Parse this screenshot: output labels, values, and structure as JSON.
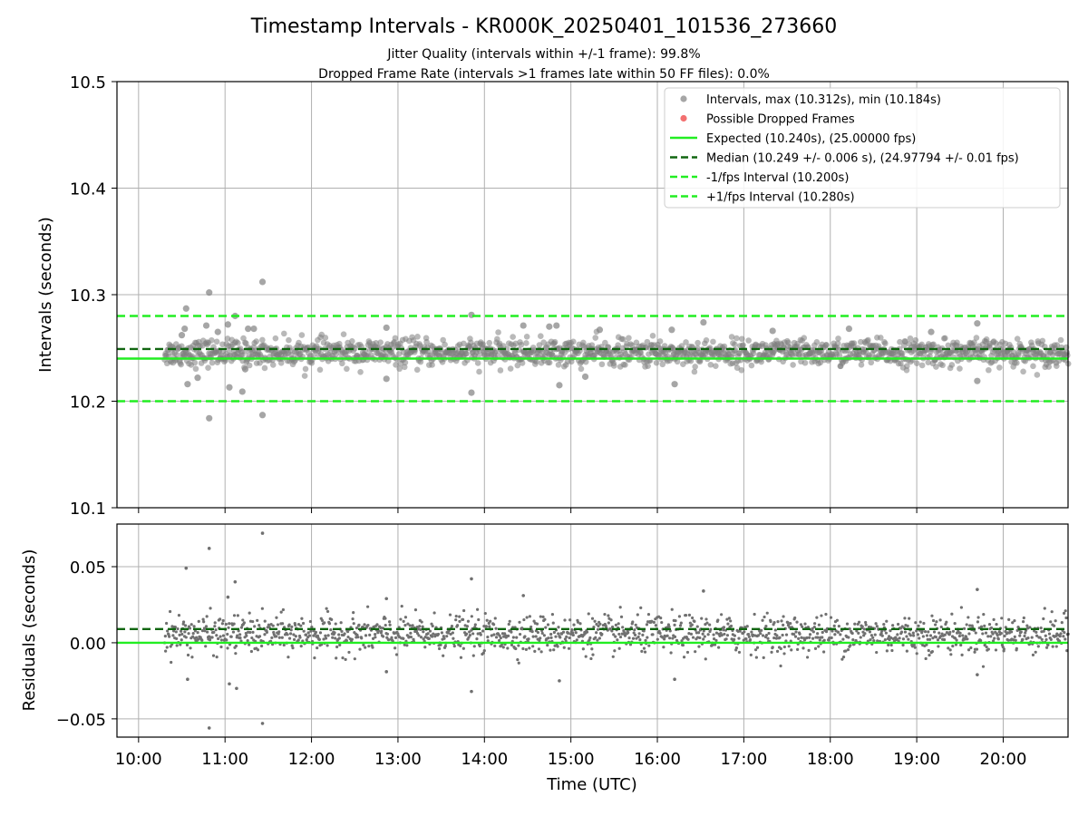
{
  "chart_data": [
    {
      "type": "scatter",
      "title": "Timestamp Intervals - KR000K_20250401_101536_273660",
      "subtitle_lines": [
        "Jitter Quality (intervals within +/-1 frame): 99.8%",
        "Dropped Frame Rate (intervals >1 frames late within 50 FF files): 0.0%"
      ],
      "ylabel": "Intervals (seconds)",
      "xlabel": "",
      "xlim": [
        "09:45",
        "20:45"
      ],
      "ylim": [
        10.1,
        10.5
      ],
      "x_ticks": [
        "10:00",
        "11:00",
        "12:00",
        "13:00",
        "14:00",
        "15:00",
        "16:00",
        "17:00",
        "18:00",
        "19:00",
        "20:00"
      ],
      "y_ticks": [
        "10.1",
        "10.2",
        "10.3",
        "10.4",
        "10.5"
      ],
      "grid": true,
      "legend_position": "top-right",
      "legend": [
        {
          "label": "Intervals, max (10.312s), min (10.184s)",
          "kind": "marker",
          "color": "#808080"
        },
        {
          "label": "Possible Dropped Frames",
          "kind": "marker",
          "color": "#ee3333"
        },
        {
          "label": "Expected (10.240s), (25.00000 fps)",
          "kind": "solid",
          "color": "#22ee22"
        },
        {
          "label": "Median (10.249 +/- 0.006 s), (24.97794 +/- 0.01 fps)",
          "kind": "dashed",
          "color": "#116611"
        },
        {
          "label": "-1/fps Interval (10.200s)",
          "kind": "dashed",
          "color": "#22ee22"
        },
        {
          "label": "+1/fps Interval (10.280s)",
          "kind": "dashed",
          "color": "#22ee22"
        }
      ],
      "reference_lines": [
        {
          "name": "Expected",
          "y": 10.24,
          "style": "solid",
          "color": "#22ee22"
        },
        {
          "name": "Median",
          "y": 10.249,
          "style": "dashed",
          "color": "#116611"
        },
        {
          "name": "-1/fps Interval",
          "y": 10.2,
          "style": "dashed",
          "color": "#22ee22"
        },
        {
          "name": "+1/fps Interval",
          "y": 10.28,
          "style": "dashed",
          "color": "#22ee22"
        }
      ],
      "series": [
        {
          "name": "Intervals",
          "color": "#808080",
          "x_range": [
            "10:18",
            "20:45"
          ],
          "typical_band": [
            10.233,
            10.258
          ],
          "outliers": [
            {
              "x": "10:30",
              "y": 10.262
            },
            {
              "x": "10:32",
              "y": 10.268
            },
            {
              "x": "10:33",
              "y": 10.287
            },
            {
              "x": "10:34",
              "y": 10.216
            },
            {
              "x": "10:41",
              "y": 10.222
            },
            {
              "x": "10:47",
              "y": 10.271
            },
            {
              "x": "10:49",
              "y": 10.302
            },
            {
              "x": "10:49",
              "y": 10.184
            },
            {
              "x": "10:55",
              "y": 10.265
            },
            {
              "x": "11:02",
              "y": 10.272
            },
            {
              "x": "11:03",
              "y": 10.213
            },
            {
              "x": "11:07",
              "y": 10.28
            },
            {
              "x": "11:12",
              "y": 10.209
            },
            {
              "x": "11:14",
              "y": 10.23
            },
            {
              "x": "11:16",
              "y": 10.268
            },
            {
              "x": "11:20",
              "y": 10.268
            },
            {
              "x": "11:26",
              "y": 10.312
            },
            {
              "x": "11:26",
              "y": 10.187
            },
            {
              "x": "12:52",
              "y": 10.269
            },
            {
              "x": "12:52",
              "y": 10.221
            },
            {
              "x": "13:51",
              "y": 10.281
            },
            {
              "x": "13:51",
              "y": 10.208
            },
            {
              "x": "14:27",
              "y": 10.271
            },
            {
              "x": "14:45",
              "y": 10.27
            },
            {
              "x": "14:50",
              "y": 10.271
            },
            {
              "x": "14:52",
              "y": 10.215
            },
            {
              "x": "15:10",
              "y": 10.223
            },
            {
              "x": "15:20",
              "y": 10.267
            },
            {
              "x": "16:10",
              "y": 10.267
            },
            {
              "x": "16:12",
              "y": 10.216
            },
            {
              "x": "16:32",
              "y": 10.274
            },
            {
              "x": "17:20",
              "y": 10.266
            },
            {
              "x": "18:13",
              "y": 10.268
            },
            {
              "x": "19:10",
              "y": 10.265
            },
            {
              "x": "19:42",
              "y": 10.273
            },
            {
              "x": "19:42",
              "y": 10.219
            }
          ]
        },
        {
          "name": "Possible Dropped Frames",
          "color": "#ee3333",
          "points": []
        }
      ]
    },
    {
      "type": "scatter",
      "title": "",
      "xlabel": "Time (UTC)",
      "ylabel": "Residuals (seconds)",
      "xlim": [
        "09:45",
        "20:45"
      ],
      "ylim": [
        -0.062,
        0.078
      ],
      "x_ticks": [
        "10:00",
        "11:00",
        "12:00",
        "13:00",
        "14:00",
        "15:00",
        "16:00",
        "17:00",
        "18:00",
        "19:00",
        "20:00"
      ],
      "y_ticks": [
        "0.05",
        "0.00",
        "−0.05"
      ],
      "y_tick_values": [
        0.05,
        0.0,
        -0.05
      ],
      "grid": true,
      "reference_lines": [
        {
          "name": "Expected",
          "y": 0.0,
          "style": "solid",
          "color": "#22ee22"
        },
        {
          "name": "Median",
          "y": 0.009,
          "style": "dashed",
          "color": "#116611"
        }
      ],
      "series": [
        {
          "name": "Residuals",
          "color": "#707070",
          "x_range": [
            "10:18",
            "20:45"
          ],
          "typical_band": [
            -0.007,
            0.018
          ],
          "outliers": [
            {
              "x": "10:33",
              "y": 0.049
            },
            {
              "x": "10:34",
              "y": -0.024
            },
            {
              "x": "10:49",
              "y": 0.062
            },
            {
              "x": "10:49",
              "y": -0.056
            },
            {
              "x": "11:02",
              "y": 0.03
            },
            {
              "x": "11:03",
              "y": -0.027
            },
            {
              "x": "11:07",
              "y": 0.04
            },
            {
              "x": "11:08",
              "y": -0.03
            },
            {
              "x": "11:26",
              "y": 0.072
            },
            {
              "x": "11:26",
              "y": -0.053
            },
            {
              "x": "12:52",
              "y": 0.029
            },
            {
              "x": "12:52",
              "y": -0.019
            },
            {
              "x": "13:51",
              "y": 0.042
            },
            {
              "x": "13:51",
              "y": -0.032
            },
            {
              "x": "14:27",
              "y": 0.031
            },
            {
              "x": "14:52",
              "y": -0.025
            },
            {
              "x": "16:12",
              "y": -0.024
            },
            {
              "x": "16:32",
              "y": 0.034
            },
            {
              "x": "19:42",
              "y": 0.035
            },
            {
              "x": "19:42",
              "y": -0.021
            }
          ]
        }
      ]
    }
  ]
}
